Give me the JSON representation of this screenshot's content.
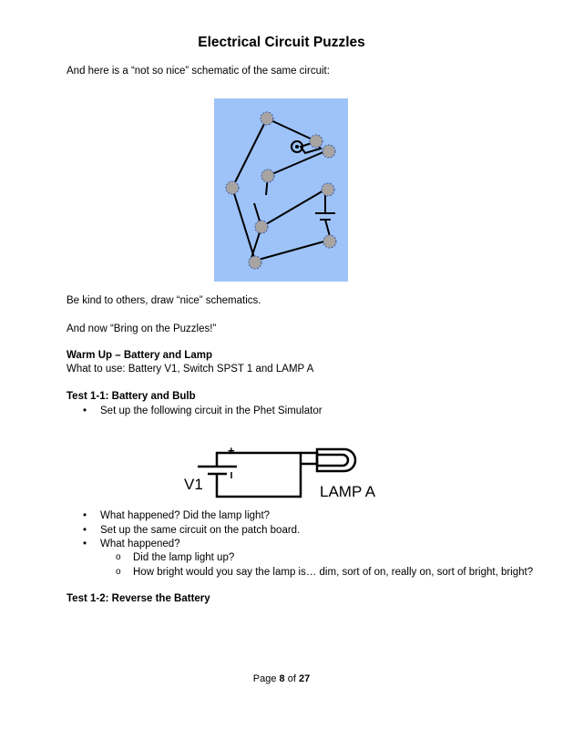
{
  "title": "Electrical Circuit Puzzles",
  "intro": "And here is a “not so nice” schematic of the same circuit:",
  "kind_line": "Be kind to others, draw “nice” schematics.",
  "bring_line": "And now “Bring on the Puzzles!”",
  "warmup": {
    "heading": "Warm Up – Battery and Lamp",
    "what_to_use": "What to use: Battery V1, Switch SPST 1 and LAMP A"
  },
  "test11": {
    "heading": "Test 1-1:  Battery and Bulb",
    "bullet_setup": "Set up the following circuit in the Phet Simulator",
    "bullets": [
      "What happened?  Did the lamp light?",
      "Set up the same circuit on the patch board.",
      "What happened?"
    ],
    "sub_bullets": [
      "Did the lamp light up?",
      "How bright would you say the lamp is… dim, sort of on, really on, sort of bright, bright?"
    ]
  },
  "diagram_labels": {
    "v1": "V1",
    "lamp": "LAMP A",
    "plus": "+"
  },
  "test12": {
    "heading": "Test 1-2: Reverse the Battery"
  },
  "footer": {
    "prefix": "Page ",
    "current": "8",
    "middle": " of ",
    "total": "27"
  },
  "colors": {
    "schematic_bg": "#9ec3f9",
    "node_fill": "#a8a4a2",
    "node_stroke": "#3a5aa0"
  }
}
